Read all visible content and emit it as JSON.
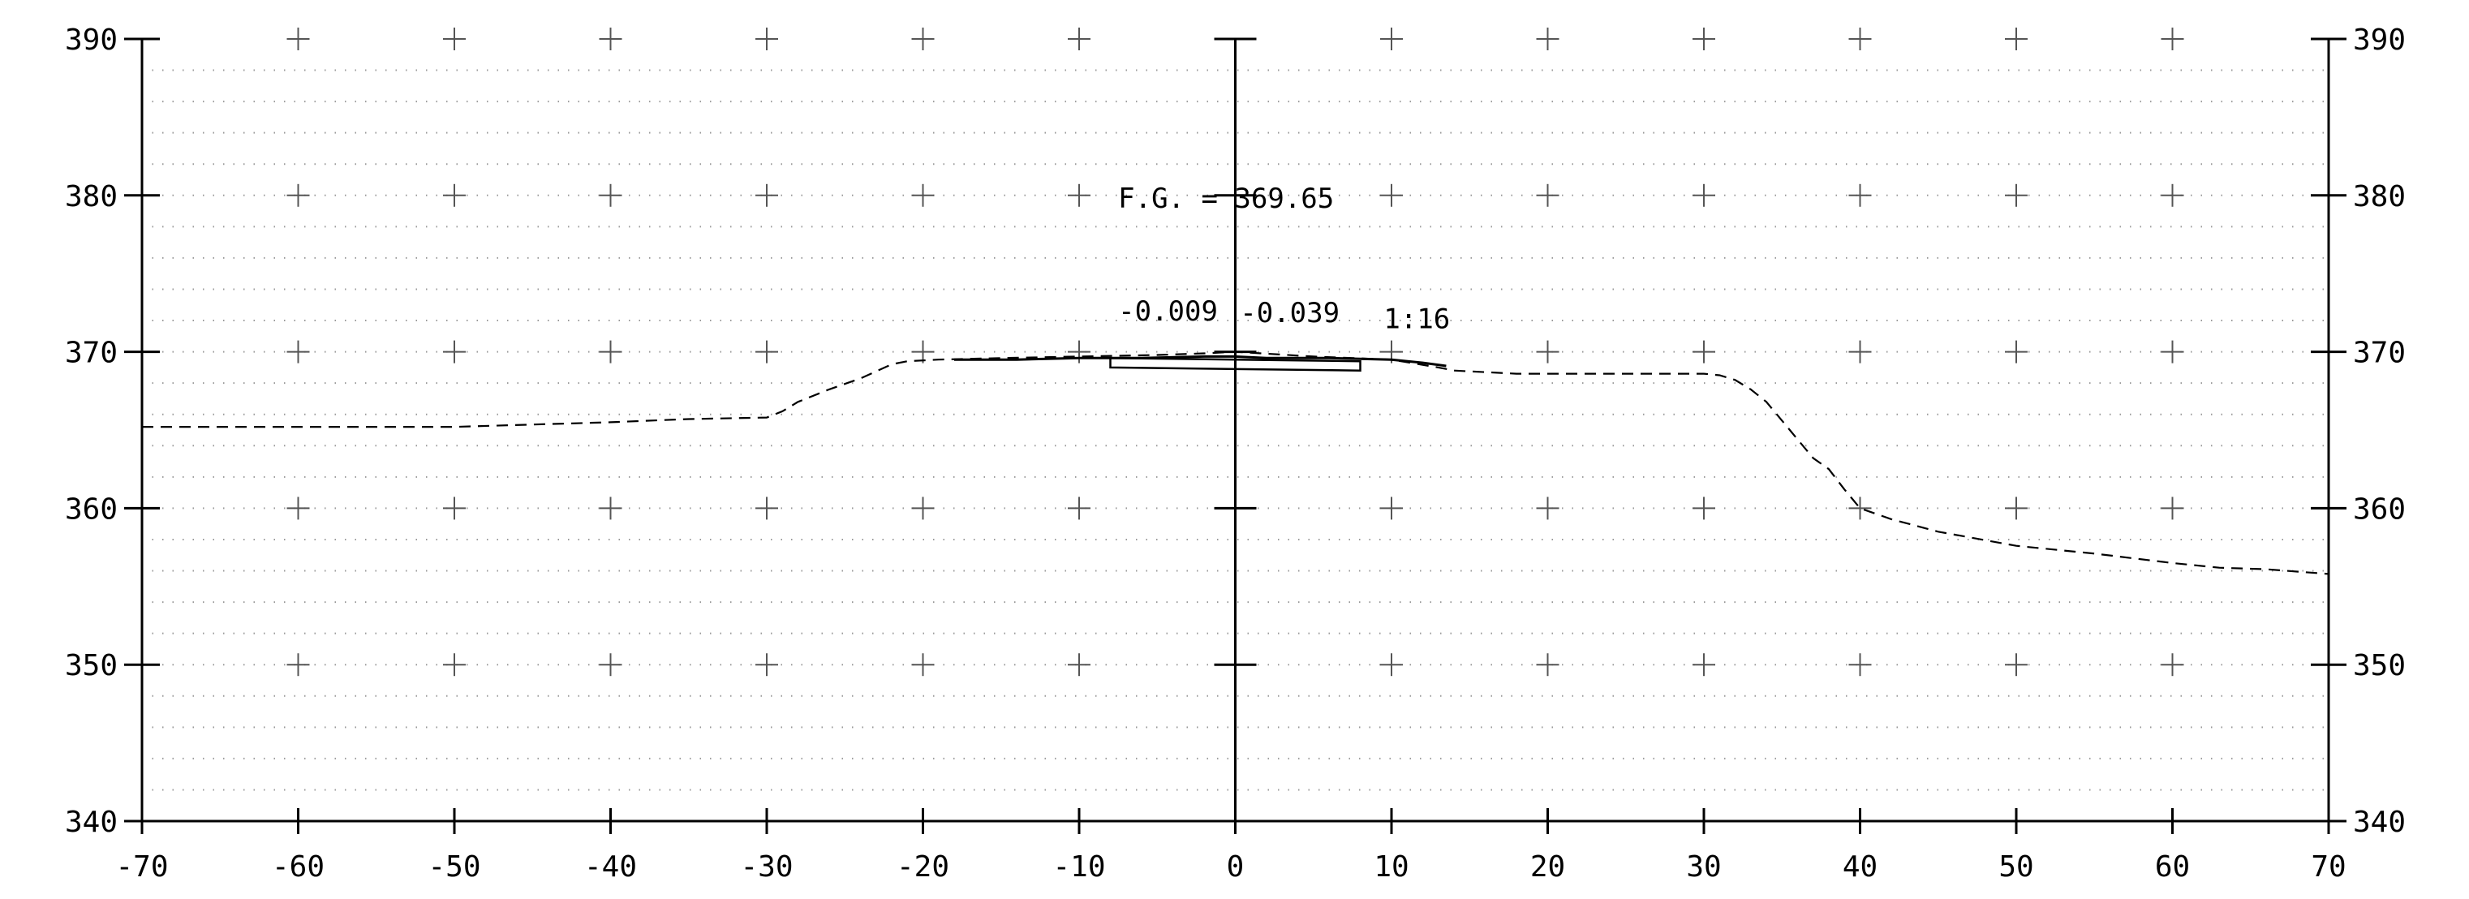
{
  "chart_data": {
    "type": "line",
    "title": "",
    "xlabel": "",
    "ylabel": "",
    "xlim": [
      -70,
      70
    ],
    "ylim": [
      340,
      390
    ],
    "x_ticks": [
      -70,
      -60,
      -50,
      -40,
      -30,
      -20,
      -10,
      0,
      10,
      20,
      30,
      40,
      50,
      60,
      70
    ],
    "x_tick_labels": [
      "-70",
      "-60",
      "-50",
      "-40",
      "-30",
      "-20",
      "-10",
      "0",
      "10",
      "20",
      "30",
      "40",
      "50",
      "60",
      "70"
    ],
    "y_ticks": [
      340,
      350,
      360,
      370,
      380,
      390
    ],
    "y_tick_labels": [
      "340",
      "350",
      "360",
      "370",
      "380",
      "390"
    ],
    "grid": true,
    "legend": "none",
    "series": [
      {
        "style": "dashed",
        "x": [
          -70,
          -60,
          -50,
          -40,
          -35,
          -30,
          -29,
          -28,
          -26,
          -24,
          -22,
          -21,
          -19,
          -15,
          -10,
          -5,
          -2,
          0,
          5,
          10,
          13,
          14,
          18,
          20,
          25,
          30,
          31,
          32,
          33,
          34,
          35,
          36,
          37,
          38,
          39,
          40,
          42,
          45,
          50,
          55,
          60,
          63,
          66,
          70
        ],
        "y": [
          365.2,
          365.2,
          365.2,
          365.5,
          365.7,
          365.8,
          366.2,
          366.8,
          367.6,
          368.3,
          369.2,
          369.4,
          369.5,
          369.6,
          369.7,
          369.8,
          369.9,
          370.0,
          369.7,
          369.5,
          369.0,
          368.8,
          368.6,
          368.6,
          368.6,
          368.6,
          368.5,
          368.2,
          367.6,
          366.8,
          365.6,
          364.4,
          363.2,
          362.5,
          361.2,
          360.0,
          359.3,
          358.5,
          357.6,
          357.1,
          356.5,
          356.2,
          356.1,
          355.8
        ]
      },
      {
        "style": "solid",
        "x": [
          -18,
          -14,
          -10,
          -6,
          -2,
          0,
          2,
          6,
          10,
          12,
          13.5
        ],
        "y": [
          369.5,
          369.5,
          369.6,
          369.6,
          369.7,
          369.7,
          369.6,
          369.6,
          369.5,
          369.3,
          369.1
        ]
      }
    ],
    "pavement_box": {
      "x0": -8,
      "x1": 8,
      "y_top_left": 369.6,
      "y_bottom_left": 369.0,
      "y_top_right": 369.4,
      "y_bottom_right": 368.8
    },
    "annotations": [
      {
        "text": "F.G.  = 369.65",
        "x": -7.5,
        "y": 379.2
      },
      {
        "text": "-0.009",
        "x": -7.5,
        "y": 372.0
      },
      {
        "text": "-0.039",
        "x": 0.3,
        "y": 371.9
      },
      {
        "text": "1:16",
        "x": 9.5,
        "y": 371.5
      }
    ]
  }
}
